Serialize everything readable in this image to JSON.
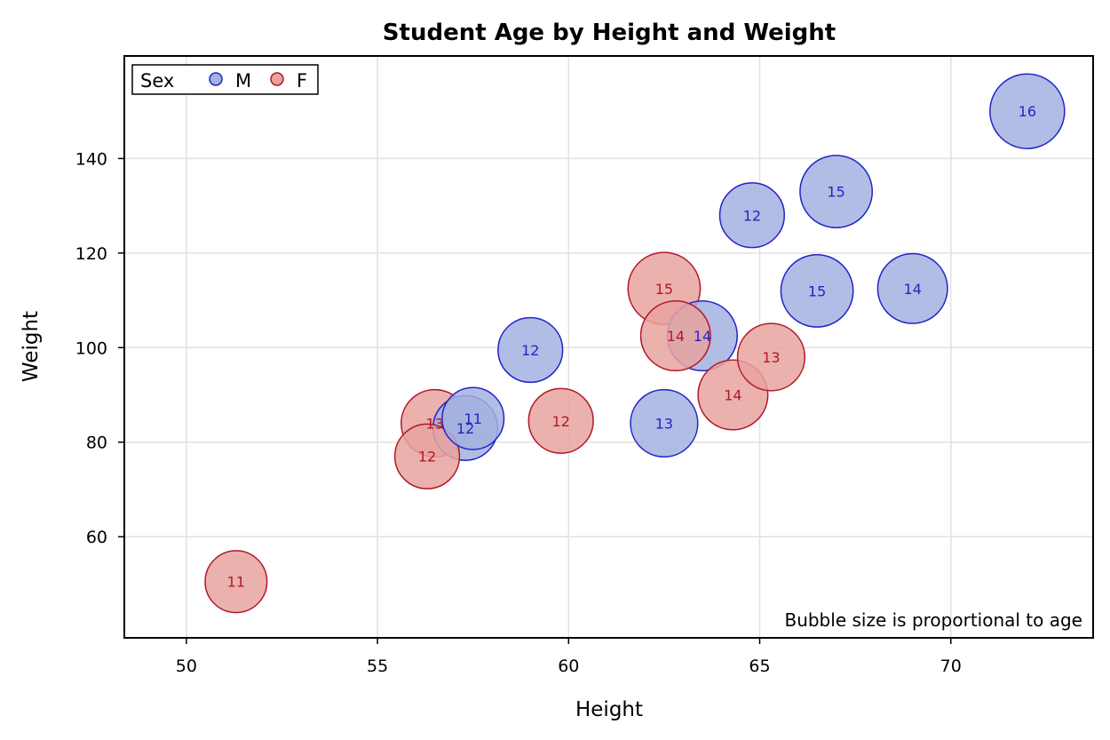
{
  "chart_data": {
    "type": "scatter",
    "subtype": "bubble",
    "title": "Student Age by Height and Weight",
    "xlabel": "Height",
    "ylabel": "Weight",
    "xlim": [
      48.4,
      73.7
    ],
    "ylim": [
      38.8,
      161.5
    ],
    "xticks": [
      50,
      55,
      60,
      65,
      70
    ],
    "yticks": [
      60,
      80,
      100,
      120,
      140
    ],
    "grid": true,
    "legend": {
      "title": "Sex",
      "placement": "top-left",
      "entries": [
        "M",
        "F"
      ]
    },
    "annotation": "Bubble size is proportional to age",
    "size_variable": "age",
    "series": [
      {
        "name": "M",
        "fill": "#a3b2df",
        "stroke": "#2323c8",
        "text": "#2323c8",
        "points": [
          {
            "x": 72.0,
            "y": 150.0,
            "size": 16,
            "label": "16"
          },
          {
            "x": 67.0,
            "y": 133.0,
            "size": 15,
            "label": "15"
          },
          {
            "x": 66.5,
            "y": 112.0,
            "size": 15,
            "label": "15"
          },
          {
            "x": 69.0,
            "y": 112.5,
            "size": 14,
            "label": "14"
          },
          {
            "x": 63.5,
            "y": 102.5,
            "size": 14,
            "label": "14"
          },
          {
            "x": 62.5,
            "y": 84.0,
            "size": 13,
            "label": "13"
          },
          {
            "x": 64.8,
            "y": 128.0,
            "size": 12,
            "label": "12"
          },
          {
            "x": 59.0,
            "y": 99.5,
            "size": 12,
            "label": "12"
          },
          {
            "x": 57.3,
            "y": 83.0,
            "size": 12,
            "label": "12"
          },
          {
            "x": 57.5,
            "y": 85.0,
            "size": 11,
            "label": "11"
          }
        ]
      },
      {
        "name": "F",
        "fill": "#e8a39f",
        "stroke": "#b2182b",
        "text": "#b2182b",
        "points": [
          {
            "x": 62.5,
            "y": 112.5,
            "size": 15,
            "label": "15"
          },
          {
            "x": 62.8,
            "y": 102.5,
            "size": 14,
            "label": "14"
          },
          {
            "x": 64.3,
            "y": 90.0,
            "size": 14,
            "label": "14"
          },
          {
            "x": 65.3,
            "y": 98.0,
            "size": 13,
            "label": "13"
          },
          {
            "x": 56.5,
            "y": 84.0,
            "size": 13,
            "label": "13"
          },
          {
            "x": 59.8,
            "y": 84.5,
            "size": 12,
            "label": "12"
          },
          {
            "x": 56.3,
            "y": 77.0,
            "size": 12,
            "label": "12"
          },
          {
            "x": 51.3,
            "y": 50.5,
            "size": 11,
            "label": "11"
          }
        ]
      }
    ]
  }
}
